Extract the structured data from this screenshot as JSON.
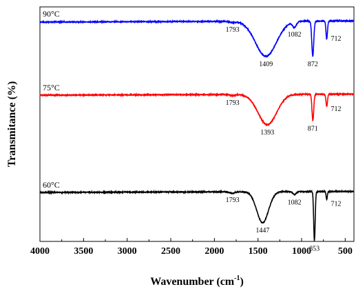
{
  "chart_data": {
    "type": "line",
    "xlabel_main": "Wavenumber (cm",
    "xlabel_sup": "-1",
    "xlabel_end": ")",
    "ylabel": "Transmitance (%)",
    "xlim": [
      4000,
      400
    ],
    "x_axis_reversed": true,
    "x_ticks": [
      4000,
      3500,
      3000,
      2500,
      2000,
      1500,
      1000,
      500
    ],
    "x_tick_labels": [
      "4000",
      "3500",
      "3000",
      "2500",
      "2000",
      "1500",
      "1000",
      "500"
    ],
    "y_ticks_shown": false,
    "y_units": "arbitrary, curves vertically offset",
    "series": [
      {
        "name": "90°C",
        "color": "#0000ff",
        "baseline": 1.0,
        "peaks": [
          {
            "wn": 1793,
            "depth": 0.02,
            "width": 40,
            "label": "1793"
          },
          {
            "wn": 1409,
            "depth": 0.62,
            "width": 170,
            "label": "1409"
          },
          {
            "wn": 1082,
            "depth": 0.1,
            "width": 30,
            "label": "1082"
          },
          {
            "wn": 872,
            "depth": 0.62,
            "width": 16,
            "label": "872"
          },
          {
            "wn": 712,
            "depth": 0.32,
            "width": 12,
            "label": "712"
          }
        ]
      },
      {
        "name": "75°C",
        "color": "#ff0000",
        "baseline": 1.0,
        "peaks": [
          {
            "wn": 1793,
            "depth": 0.02,
            "width": 40,
            "label": "1793"
          },
          {
            "wn": 1393,
            "depth": 0.55,
            "width": 150,
            "label": "1393"
          },
          {
            "wn": 871,
            "depth": 0.48,
            "width": 14,
            "label": "871"
          },
          {
            "wn": 712,
            "depth": 0.22,
            "width": 12,
            "label": "712"
          }
        ]
      },
      {
        "name": "60°C",
        "color": "#000000",
        "baseline": 1.0,
        "peaks": [
          {
            "wn": 1793,
            "depth": 0.03,
            "width": 40,
            "label": "1793"
          },
          {
            "wn": 1447,
            "depth": 0.6,
            "width": 95,
            "label": "1447"
          },
          {
            "wn": 1082,
            "depth": 0.06,
            "width": 25,
            "label": "1082"
          },
          {
            "wn": 853,
            "depth": 0.95,
            "width": 12,
            "label": "853"
          },
          {
            "wn": 712,
            "depth": 0.15,
            "width": 10,
            "label": "712"
          }
        ]
      }
    ],
    "grid": false,
    "legend": "none (series labelled inline at top-left of each curve)"
  }
}
